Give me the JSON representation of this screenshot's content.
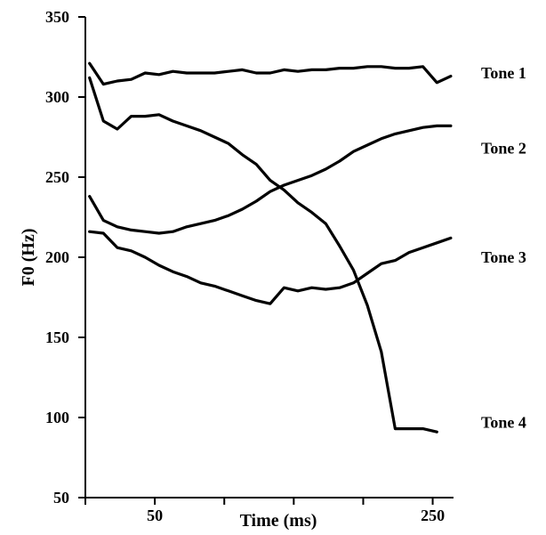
{
  "chart_data": {
    "type": "line",
    "title": "",
    "xlabel": "Time (ms)",
    "ylabel": "F0 (Hz)",
    "xlim": [
      0,
      265
    ],
    "ylim": [
      50,
      350
    ],
    "xticks": [
      50,
      250
    ],
    "yticks": [
      50,
      100,
      150,
      200,
      250,
      300,
      350
    ],
    "grid": false,
    "legend": "none",
    "line_color": "#000000",
    "series": [
      {
        "name": "Tone 1",
        "x": [
          3,
          13,
          23,
          33,
          43,
          53,
          63,
          73,
          83,
          93,
          103,
          113,
          123,
          133,
          143,
          153,
          163,
          173,
          183,
          193,
          203,
          213,
          223,
          233,
          243,
          253,
          263
        ],
        "y": [
          321,
          308,
          310,
          311,
          315,
          314,
          316,
          315,
          315,
          315,
          316,
          317,
          315,
          315,
          317,
          316,
          317,
          317,
          318,
          318,
          319,
          319,
          318,
          318,
          319,
          309,
          313
        ]
      },
      {
        "name": "Tone 2",
        "x": [
          3,
          13,
          23,
          33,
          43,
          53,
          63,
          73,
          83,
          93,
          103,
          113,
          123,
          133,
          143,
          153,
          163,
          173,
          183,
          193,
          203,
          213,
          223,
          233,
          243,
          253,
          263
        ],
        "y": [
          238,
          223,
          219,
          217,
          216,
          215,
          216,
          219,
          221,
          223,
          226,
          230,
          235,
          241,
          245,
          248,
          251,
          255,
          260,
          266,
          270,
          274,
          277,
          279,
          281,
          282,
          282
        ]
      },
      {
        "name": "Tone 3",
        "x": [
          3,
          13,
          23,
          33,
          43,
          53,
          63,
          73,
          83,
          93,
          103,
          113,
          123,
          133,
          143,
          153,
          163,
          173,
          183,
          193,
          203,
          213,
          223,
          233,
          243,
          253,
          263
        ],
        "y": [
          216,
          215,
          206,
          204,
          200,
          195,
          191,
          188,
          184,
          182,
          179,
          176,
          173,
          171,
          181,
          179,
          181,
          180,
          181,
          184,
          190,
          196,
          198,
          203,
          206,
          209,
          212
        ]
      },
      {
        "name": "Tone 4",
        "x": [
          3,
          13,
          23,
          33,
          43,
          53,
          63,
          73,
          83,
          93,
          103,
          113,
          123,
          133,
          143,
          153,
          163,
          173,
          183,
          193,
          203,
          213,
          223,
          233,
          243,
          253
        ],
        "y": [
          312,
          285,
          280,
          288,
          288,
          289,
          285,
          282,
          279,
          275,
          271,
          264,
          258,
          248,
          242,
          234,
          228,
          221,
          207,
          192,
          170,
          141,
          93,
          93,
          93,
          91
        ]
      }
    ]
  }
}
